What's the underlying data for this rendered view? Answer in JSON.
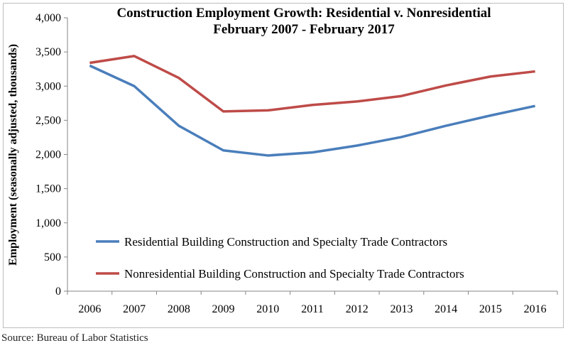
{
  "chart_data": {
    "type": "line",
    "title": "Construction Employment Growth:  Residential v. Nonresidential",
    "subtitle": "February 2007 - February 2017",
    "xlabel": "",
    "ylabel": "Employment (seasonally adjusted, thousands)",
    "ylim": [
      0,
      4000
    ],
    "yticks": [
      "0",
      "500",
      "1,000",
      "1,500",
      "2,000",
      "2,500",
      "3,000",
      "3,500",
      "4,000"
    ],
    "categories": [
      "2006",
      "2007",
      "2008",
      "2009",
      "2010",
      "2011",
      "2012",
      "2013",
      "2014",
      "2015",
      "2016"
    ],
    "grid": false,
    "legend_placement": "bottom-inside",
    "series": [
      {
        "name": "Residential Building Construction and Specialty Trade Contractors",
        "color": "#4a7ebb",
        "values": [
          3300,
          3000,
          2420,
          2060,
          1985,
          2030,
          2130,
          2255,
          2420,
          2570,
          2710
        ]
      },
      {
        "name": "Nonresidential Building Construction and Specialty Trade Contractors",
        "color": "#be4b48",
        "values": [
          3340,
          3440,
          3120,
          2630,
          2645,
          2725,
          2775,
          2855,
          3010,
          3140,
          3215
        ]
      }
    ]
  },
  "source": "Source:  Bureau of Labor Statistics"
}
